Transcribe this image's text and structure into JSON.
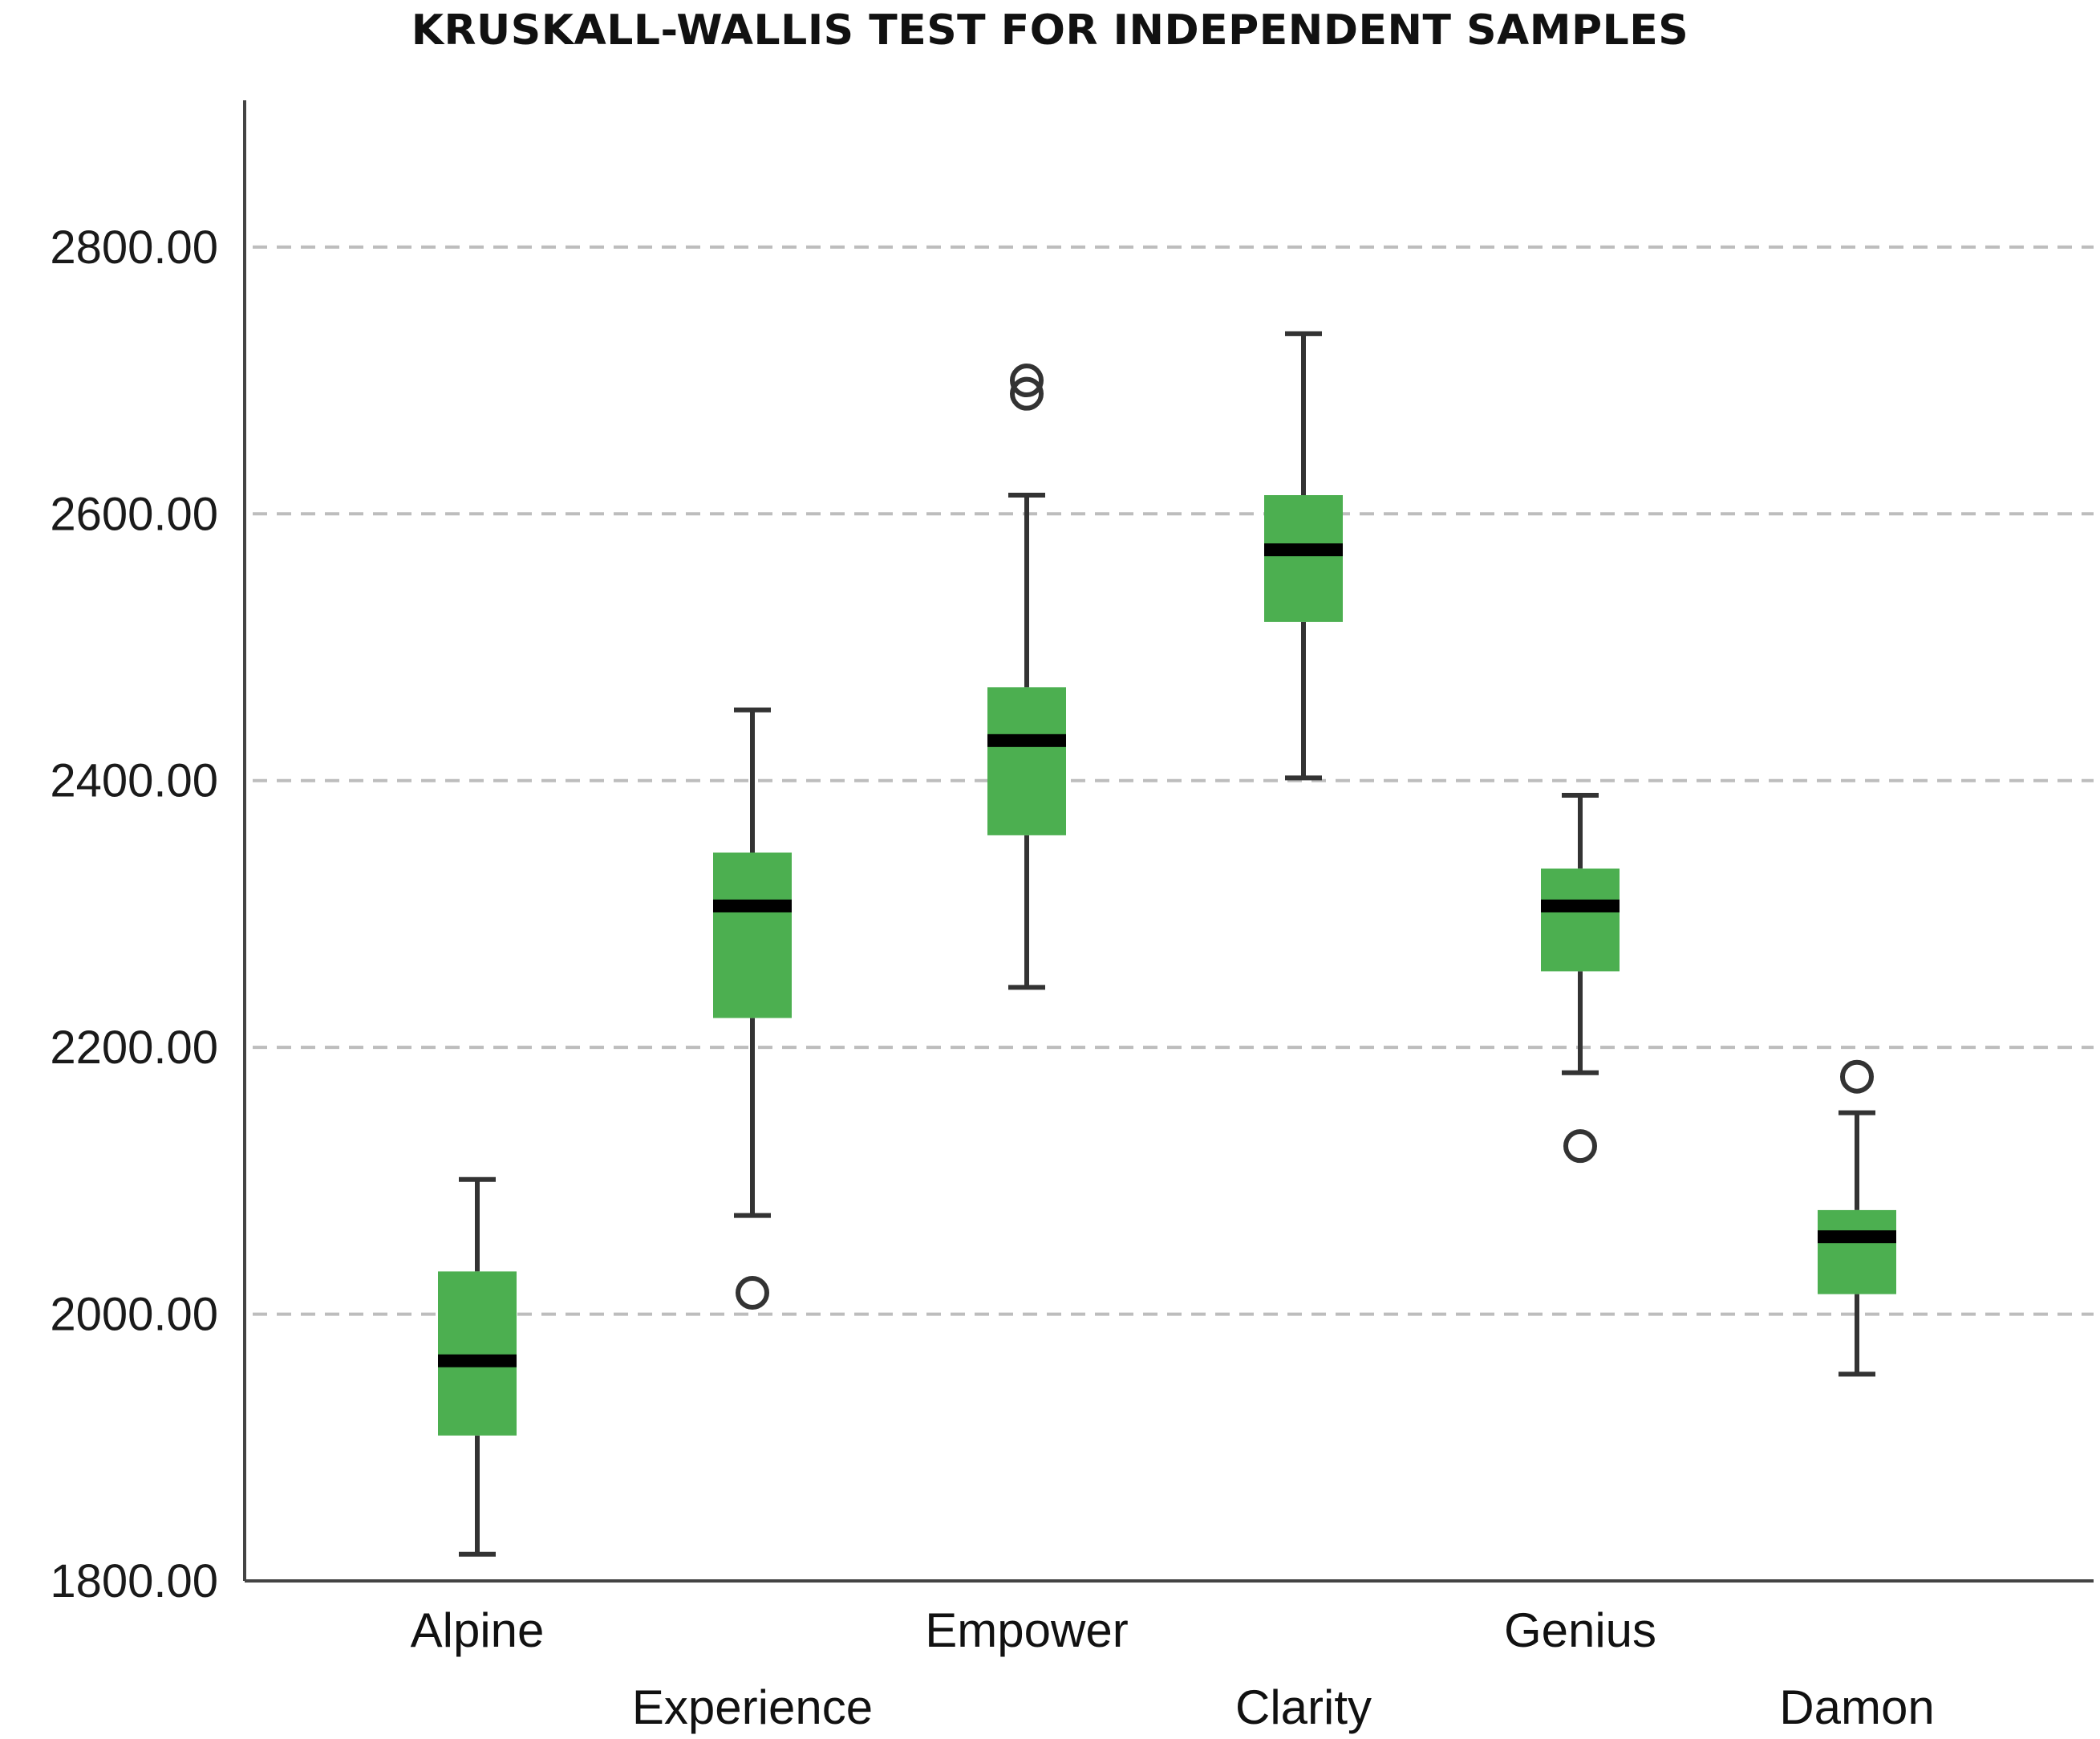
{
  "chart_data": {
    "type": "boxplot",
    "title": "KRUSKALL-WALLIS TEST FOR INDEPENDENT SAMPLES",
    "xlabel": "",
    "ylabel": "",
    "ylim": [
      1800,
      2910
    ],
    "yticks": [
      1800,
      2000,
      2200,
      2400,
      2600,
      2800
    ],
    "ytick_labels": [
      "1800.00",
      "2000.00",
      "2200.00",
      "2400.00",
      "2600.00",
      "2800.00"
    ],
    "grid": true,
    "box_color": "#4caf50",
    "median_color": "#000000",
    "boxes": [
      {
        "name": "Alpine",
        "min": 1820,
        "q1": 1909,
        "median": 1965,
        "q3": 2032,
        "max": 2101,
        "outliers": []
      },
      {
        "name": "Experience",
        "min": 2074,
        "q1": 2222,
        "median": 2306,
        "q3": 2346,
        "max": 2453,
        "outliers": [
          2016
        ]
      },
      {
        "name": "Empower",
        "min": 2245,
        "q1": 2359,
        "median": 2430,
        "q3": 2470,
        "max": 2614,
        "outliers": [
          2690,
          2700
        ]
      },
      {
        "name": "Clarity",
        "min": 2402,
        "q1": 2519,
        "median": 2573,
        "q3": 2614,
        "max": 2735,
        "outliers": []
      },
      {
        "name": "Genius",
        "min": 2181,
        "q1": 2257,
        "median": 2306,
        "q3": 2334,
        "max": 2389,
        "outliers": [
          2126
        ]
      },
      {
        "name": "Damon",
        "min": 1955,
        "q1": 2015,
        "median": 2058,
        "q3": 2078,
        "max": 2151,
        "outliers": [
          2178
        ]
      }
    ]
  }
}
